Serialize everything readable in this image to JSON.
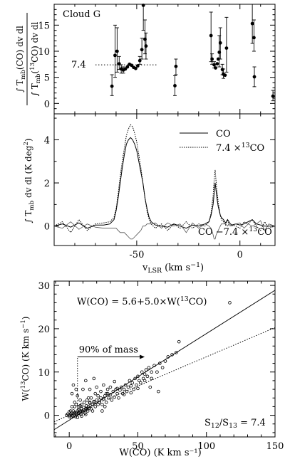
{
  "chart_data": [
    {
      "type": "scatter",
      "annotation": "Cloud G",
      "xlim": [
        -90,
        17
      ],
      "ylim": [
        -2,
        19
      ],
      "yticks": [
        0,
        5,
        10,
        15
      ],
      "ylabel_parts": [
        "∫ T",
        "mb",
        "(CO) dv dl",
        "∫ T",
        "mb",
        "(",
        "13",
        "CO) dv dl"
      ],
      "ratio_label": "7.4",
      "ratio_value": 7.4,
      "ratio_range": [
        -70,
        -40
      ],
      "points": [
        {
          "x": -62,
          "y": 3.3,
          "lo": 1.5,
          "hi": 5.5
        },
        {
          "x": -60.5,
          "y": 9.2,
          "lo": 5,
          "hi": 15
        },
        {
          "x": -59.5,
          "y": 10,
          "lo": 6,
          "hi": 14.5
        },
        {
          "x": -58.5,
          "y": 7.6,
          "lo": 6.5,
          "hi": 9
        },
        {
          "x": -57.5,
          "y": 6.6,
          "lo": 5.8,
          "hi": 7.4
        },
        {
          "x": -56.5,
          "y": 6.4,
          "lo": 5.8,
          "hi": 7
        },
        {
          "x": -55.5,
          "y": 6.6
        },
        {
          "x": -54.5,
          "y": 7.0
        },
        {
          "x": -53.5,
          "y": 7.5
        },
        {
          "x": -52.5,
          "y": 7.3
        },
        {
          "x": -51.5,
          "y": 6.9
        },
        {
          "x": -50.5,
          "y": 6.7
        },
        {
          "x": -49.5,
          "y": 7.2
        },
        {
          "x": -48.5,
          "y": 8.2,
          "lo": 7.5,
          "hi": 9
        },
        {
          "x": -47.5,
          "y": 10.3,
          "lo": 8.5,
          "hi": 12.5
        },
        {
          "x": -46.8,
          "y": 18.8,
          "lo": 14,
          "hi": 19
        },
        {
          "x": -46,
          "y": 12.3,
          "lo": 9.5,
          "hi": 16
        },
        {
          "x": -45.5,
          "y": 11,
          "lo": 8.5,
          "hi": 13.5
        },
        {
          "x": -31.5,
          "y": 3.4,
          "lo": 1.5,
          "hi": 5.3
        },
        {
          "x": -31,
          "y": 7.1,
          "lo": 5.5,
          "hi": 8.5
        },
        {
          "x": -14,
          "y": 13,
          "lo": 8,
          "hi": 17.5
        },
        {
          "x": -13.5,
          "y": 8.5,
          "lo": 7.5,
          "hi": 9.5
        },
        {
          "x": -12.5,
          "y": 7.4,
          "lo": 6.8,
          "hi": 8
        },
        {
          "x": -11.8,
          "y": 6.8
        },
        {
          "x": -11,
          "y": 7.6
        },
        {
          "x": -10.5,
          "y": 8.5
        },
        {
          "x": -10,
          "y": 9.8,
          "lo": 7,
          "hi": 13
        },
        {
          "x": -9.5,
          "y": 11.6,
          "lo": 8.5,
          "hi": 14.5
        },
        {
          "x": -8.5,
          "y": 6.5,
          "lo": 5.5,
          "hi": 7.5
        },
        {
          "x": -8,
          "y": 5.6,
          "lo": 4.8,
          "hi": 6.6
        },
        {
          "x": -7.2,
          "y": 5.4
        },
        {
          "x": -6.5,
          "y": 10.6,
          "lo": 6,
          "hi": 16.5
        },
        {
          "x": 6,
          "y": 15.3,
          "lo": 11.5,
          "hi": 19
        },
        {
          "x": 6.8,
          "y": 12.6,
          "lo": 10,
          "hi": 16
        },
        {
          "x": 7,
          "y": 5.1,
          "lo": 3.2,
          "hi": 7
        },
        {
          "x": 16,
          "y": 1.4,
          "lo": 0.5,
          "hi": 2.5
        }
      ]
    },
    {
      "type": "line",
      "xlim": [
        -90,
        17
      ],
      "ylim": [
        -0.9,
        5.2
      ],
      "xticks": [
        -50,
        0
      ],
      "yticks": [
        0,
        2,
        4
      ],
      "xlabel_parts": [
        "v",
        "LSR",
        " (km s",
        "−1",
        ")"
      ],
      "ylabel_parts": [
        "∫ T",
        "mb",
        " dv dl (K deg",
        "2",
        ")"
      ],
      "diff_label_parts": [
        "CO −7.4 ×",
        "13",
        "CO"
      ],
      "series": [
        {
          "name": "CO",
          "style": "solid",
          "x": [
            -90,
            -86,
            -82,
            -78,
            -74,
            -70,
            -66,
            -63,
            -61,
            -60,
            -59,
            -58,
            -57,
            -56,
            -55,
            -54,
            -53,
            -52,
            -51,
            -50,
            -49,
            -48,
            -47,
            -46,
            -45,
            -44,
            -43,
            -41,
            -38,
            -35,
            -32,
            -29,
            -26,
            -23,
            -20,
            -17,
            -15,
            -14,
            -13,
            -12.5,
            -12,
            -11.5,
            -11,
            -10.5,
            -10,
            -9.5,
            -9,
            -8,
            -7,
            -6,
            -5,
            -4,
            -2,
            0,
            2,
            4,
            6,
            8,
            10,
            12,
            14,
            17
          ],
          "y": [
            0,
            0.1,
            -0.05,
            0.15,
            -0.1,
            0.05,
            0.05,
            0.1,
            0.3,
            0.7,
            1.3,
            2.0,
            2.7,
            3.3,
            3.8,
            4.0,
            4.1,
            4.0,
            3.8,
            3.5,
            3.0,
            2.5,
            2.0,
            1.3,
            0.8,
            0.4,
            0.2,
            0.05,
            0,
            -0.05,
            0.1,
            0,
            -0.1,
            0.05,
            0,
            0.1,
            0.2,
            0.5,
            1.0,
            1.5,
            2.0,
            1.6,
            1.2,
            0.9,
            0.7,
            0.5,
            0.4,
            0.3,
            0.15,
            0.3,
            0.15,
            0.05,
            0.1,
            0.05,
            0.1,
            0.2,
            0.3,
            0.1,
            0.05,
            0,
            0,
            0
          ]
        },
        {
          "name": "7.4 × 13CO",
          "legend_parts": [
            "7.4 ×",
            "13",
            "CO"
          ],
          "style": "dotted",
          "x": [
            -90,
            -86,
            -82,
            -78,
            -74,
            -70,
            -66,
            -63,
            -61,
            -60,
            -59,
            -58,
            -57,
            -56,
            -55,
            -54,
            -53,
            -52,
            -51,
            -50,
            -49,
            -48,
            -47,
            -46,
            -45,
            -44,
            -43,
            -41,
            -38,
            -35,
            -32,
            -29,
            -26,
            -23,
            -20,
            -17,
            -15,
            -14,
            -13,
            -12.5,
            -12,
            -11.5,
            -11,
            -10.5,
            -10,
            -9.5,
            -9,
            -8,
            -7,
            -6,
            -5,
            -4,
            -2,
            0,
            2,
            4,
            6,
            8,
            10,
            12,
            14,
            17
          ],
          "y": [
            0,
            0.2,
            -0.3,
            0.3,
            -0.2,
            0.1,
            0.15,
            0.2,
            0.4,
            0.8,
            1.5,
            2.3,
            3.0,
            3.6,
            4.2,
            4.5,
            4.7,
            4.6,
            4.3,
            3.9,
            3.3,
            2.7,
            2.0,
            1.3,
            0.7,
            0.3,
            0.1,
            -0.1,
            0.1,
            -0.2,
            0.1,
            -0.1,
            0.2,
            -0.1,
            0.1,
            0,
            0.2,
            0.6,
            1.4,
            2.1,
            2.6,
            2.0,
            1.5,
            1.1,
            0.8,
            0.5,
            0.3,
            0.2,
            0.05,
            0.3,
            0,
            0.05,
            0,
            -0.1,
            0.2,
            0.1,
            0.3,
            0,
            -0.2,
            0.2,
            -0.1,
            0
          ]
        },
        {
          "name": "CO −7.4 × 13CO",
          "style": "solid-thin",
          "x": [
            -90,
            -86,
            -82,
            -78,
            -74,
            -70,
            -66,
            -63,
            -61,
            -60,
            -59,
            -58,
            -57,
            -56,
            -55,
            -54,
            -53,
            -52,
            -51,
            -50,
            -49,
            -48,
            -47,
            -46,
            -45,
            -44,
            -43,
            -41,
            -38,
            -35,
            -32,
            -29,
            -26,
            -23,
            -20,
            -17,
            -15,
            -14,
            -13,
            -12.5,
            -12,
            -11.5,
            -11,
            -10.5,
            -10,
            -9.5,
            -9,
            -8,
            -7,
            -6,
            -5,
            -4,
            -2,
            0,
            2,
            4,
            6,
            8,
            10,
            12,
            14,
            17
          ],
          "y": [
            0,
            -0.1,
            0.2,
            -0.15,
            0.1,
            -0.05,
            -0.1,
            -0.1,
            -0.1,
            -0.1,
            -0.2,
            -0.3,
            -0.3,
            -0.3,
            -0.4,
            -0.5,
            -0.6,
            -0.6,
            -0.5,
            -0.4,
            -0.3,
            -0.2,
            0,
            0,
            0.1,
            0.1,
            0.1,
            0.15,
            -0.1,
            0.15,
            0,
            0.1,
            -0.3,
            0.15,
            -0.1,
            0.1,
            0,
            -0.1,
            -0.4,
            -0.6,
            -0.6,
            -0.4,
            -0.3,
            -0.2,
            -0.1,
            0,
            0.1,
            0.1,
            0.1,
            0,
            0.15,
            0,
            0.1,
            0.15,
            -0.1,
            0.1,
            0,
            0.1,
            0.25,
            -0.2,
            0.1,
            0
          ]
        }
      ]
    },
    {
      "type": "scatter",
      "xlim": [
        -11,
        150
      ],
      "ylim": [
        -5,
        31
      ],
      "xticks": [
        0,
        50,
        100,
        150
      ],
      "yticks": [
        0,
        10,
        20,
        30
      ],
      "xlabel": "W(CO) (K km s⁻¹)",
      "ylabel_parts": [
        "W(",
        "13",
        "CO) (K km s",
        "−1",
        ")"
      ],
      "fit_label_parts": [
        "W(CO) = 5.6+5.0×W(",
        "13",
        "CO)"
      ],
      "fit": {
        "intercept": 5.6,
        "slope": 5.0
      },
      "ratio_label_parts": [
        "S",
        "12",
        "/S",
        "13",
        " = 7.4"
      ],
      "ratio_value": 7.4,
      "mass_label": "90% of mass",
      "mass_threshold": 6,
      "points": [
        [
          0,
          0
        ],
        [
          1,
          0.3
        ],
        [
          1.5,
          -0.5
        ],
        [
          2,
          0.5
        ],
        [
          2.5,
          -0.2
        ],
        [
          3,
          0.4
        ],
        [
          3.5,
          0
        ],
        [
          4,
          0.6
        ],
        [
          4.5,
          -0.3
        ],
        [
          5,
          0.5
        ],
        [
          5.5,
          0.2
        ],
        [
          6,
          1
        ],
        [
          6.5,
          0.4
        ],
        [
          7,
          1.2
        ],
        [
          7.5,
          0.5
        ],
        [
          8,
          1
        ],
        [
          8.5,
          0.2
        ],
        [
          9,
          1.5
        ],
        [
          9.5,
          1
        ],
        [
          10,
          0.8
        ],
        [
          10.5,
          1.8
        ],
        [
          11,
          1.2
        ],
        [
          11.5,
          0.5
        ],
        [
          12,
          1.5
        ],
        [
          12.5,
          2.2
        ],
        [
          13,
          1.4
        ],
        [
          13.5,
          1
        ],
        [
          14,
          2
        ],
        [
          14.5,
          1.6
        ],
        [
          15,
          2.8
        ],
        [
          16,
          1.5
        ],
        [
          17,
          2.5
        ],
        [
          18,
          3
        ],
        [
          19,
          2
        ],
        [
          20,
          3.5
        ],
        [
          21,
          2.5
        ],
        [
          22,
          3
        ],
        [
          23,
          4
        ],
        [
          24,
          2.5
        ],
        [
          25,
          3.8
        ],
        [
          26,
          4.5
        ],
        [
          27,
          3
        ],
        [
          28,
          5
        ],
        [
          29,
          4
        ],
        [
          30,
          4.8
        ],
        [
          31,
          3.5
        ],
        [
          32,
          5.5
        ],
        [
          33,
          4.2
        ],
        [
          34,
          6
        ],
        [
          35,
          5
        ],
        [
          36,
          4
        ],
        [
          37,
          5.8
        ],
        [
          38,
          6.5
        ],
        [
          39,
          5
        ],
        [
          40,
          6
        ],
        [
          41,
          7
        ],
        [
          42,
          5.5
        ],
        [
          43,
          6.5
        ],
        [
          44,
          8
        ],
        [
          45,
          6.8
        ],
        [
          46,
          7.5
        ],
        [
          47,
          6
        ],
        [
          48,
          8.5
        ],
        [
          49,
          7
        ],
        [
          50,
          9
        ],
        [
          51,
          8
        ],
        [
          52,
          7.5
        ],
        [
          53,
          10
        ],
        [
          54,
          8.5
        ],
        [
          55,
          9.5
        ],
        [
          56,
          10.5
        ],
        [
          57,
          9
        ],
        [
          58,
          11
        ],
        [
          59,
          6.5
        ],
        [
          60,
          10
        ],
        [
          62,
          11.5
        ],
        [
          64,
          10
        ],
        [
          66,
          12
        ],
        [
          68,
          11
        ],
        [
          70,
          12.5
        ],
        [
          72,
          13.5
        ],
        [
          75,
          14
        ],
        [
          78,
          14.5
        ],
        [
          80,
          17
        ],
        [
          117,
          26
        ],
        [
          2,
          5
        ],
        [
          3,
          7
        ],
        [
          5,
          6
        ],
        [
          4,
          3
        ],
        [
          6,
          4.5
        ],
        [
          8,
          3.5
        ],
        [
          10,
          6
        ],
        [
          12,
          8
        ],
        [
          15,
          6
        ],
        [
          18,
          8.5
        ],
        [
          14,
          4
        ],
        [
          20,
          6.5
        ],
        [
          25,
          7
        ],
        [
          30,
          6.5
        ],
        [
          33,
          7.8
        ],
        [
          22,
          3.5
        ],
        [
          27,
          5
        ],
        [
          5,
          2.5
        ],
        [
          7,
          2
        ],
        [
          9,
          2.5
        ],
        [
          11,
          3
        ],
        [
          13,
          3.5
        ],
        [
          16,
          4
        ],
        [
          19,
          5
        ],
        [
          21,
          4.5
        ],
        [
          23,
          5.5
        ],
        [
          26,
          2
        ],
        [
          24,
          1
        ],
        [
          17,
          1
        ],
        [
          12,
          0.2
        ],
        [
          9,
          -0.2
        ],
        [
          6,
          -0.5
        ],
        [
          3,
          1
        ],
        [
          2,
          2
        ],
        [
          1,
          1
        ],
        [
          0,
          0.8
        ],
        [
          -1,
          0.3
        ],
        [
          -2,
          0
        ],
        [
          0,
          -0.3
        ],
        [
          4,
          2
        ],
        [
          8,
          2.2
        ],
        [
          15,
          3
        ],
        [
          18,
          3.2
        ],
        [
          28,
          6
        ],
        [
          35,
          6.2
        ],
        [
          40,
          4.8
        ],
        [
          45,
          5.2
        ],
        [
          50,
          6.2
        ],
        [
          55,
          8
        ],
        [
          60,
          8.5
        ],
        [
          65,
          5.5
        ]
      ]
    }
  ]
}
